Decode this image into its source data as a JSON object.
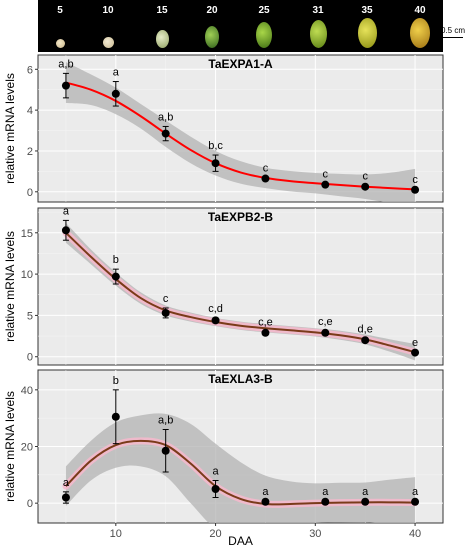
{
  "seed_strip": {
    "labels": [
      "5",
      "10",
      "15",
      "20",
      "25",
      "31",
      "35",
      "40"
    ],
    "scale_label": "0.5 cm"
  },
  "chart_data": [
    {
      "type": "line",
      "title": "TaEXPA1-A",
      "ylabel": "relative mRNA levels",
      "ylim": [
        -0.5,
        6.7
      ],
      "yticks": [
        0,
        2,
        4,
        6
      ],
      "points": [
        {
          "x": 5,
          "y": 5.2,
          "err": 0.6,
          "label": "a,b"
        },
        {
          "x": 10,
          "y": 4.8,
          "err": 0.6,
          "label": "a"
        },
        {
          "x": 15,
          "y": 2.85,
          "err": 0.35,
          "label": "a,b"
        },
        {
          "x": 20,
          "y": 1.4,
          "err": 0.4,
          "label": "b,c"
        },
        {
          "x": 25,
          "y": 0.65,
          "err": 0.05,
          "label": "c"
        },
        {
          "x": 31,
          "y": 0.35,
          "err": 0.05,
          "label": "c"
        },
        {
          "x": 35,
          "y": 0.25,
          "err": 0.05,
          "label": "c"
        },
        {
          "x": 40,
          "y": 0.1,
          "err": 0.03,
          "label": "c"
        }
      ],
      "fit": {
        "color": "#ff0000",
        "x": [
          5,
          7.5,
          10,
          12.5,
          15,
          17.5,
          20,
          22.5,
          25,
          27.5,
          30,
          32.5,
          35,
          37.5,
          40
        ],
        "y": [
          5.35,
          5.0,
          4.45,
          3.7,
          2.85,
          2.05,
          1.4,
          0.95,
          0.68,
          0.52,
          0.42,
          0.33,
          0.25,
          0.18,
          0.12
        ],
        "ci": [
          1.0,
          0.75,
          0.65,
          0.6,
          0.65,
          0.65,
          0.6,
          0.55,
          0.5,
          0.5,
          0.5,
          0.55,
          0.6,
          0.75,
          1.0
        ]
      }
    },
    {
      "type": "line",
      "title": "TaEXPB2-B",
      "ylabel": "relative mRNA levels",
      "ylim": [
        -1.0,
        18.0
      ],
      "yticks": [
        0,
        5,
        10,
        15
      ],
      "points": [
        {
          "x": 5,
          "y": 15.3,
          "err": 1.2,
          "label": "a"
        },
        {
          "x": 10,
          "y": 9.7,
          "err": 0.9,
          "label": "b"
        },
        {
          "x": 15,
          "y": 5.3,
          "err": 0.6,
          "label": "c"
        },
        {
          "x": 20,
          "y": 4.4,
          "err": 0.3,
          "label": "c,d"
        },
        {
          "x": 25,
          "y": 2.9,
          "err": 0.15,
          "label": "c,e"
        },
        {
          "x": 31,
          "y": 2.9,
          "err": 0.2,
          "label": "c,e"
        },
        {
          "x": 35,
          "y": 2.0,
          "err": 0.2,
          "label": "d,e"
        },
        {
          "x": 40,
          "y": 0.5,
          "err": 0.1,
          "label": "e"
        }
      ],
      "fit": {
        "color": "#7a3b1a",
        "x": [
          5,
          7.5,
          10,
          12.5,
          15,
          17.5,
          20,
          22.5,
          25,
          27.5,
          30,
          32.5,
          35,
          37.5,
          40
        ],
        "y": [
          15.0,
          12.1,
          9.4,
          7.1,
          5.6,
          4.8,
          4.2,
          3.75,
          3.45,
          3.2,
          2.95,
          2.6,
          2.1,
          1.35,
          0.55
        ],
        "ci": [
          1.2,
          0.9,
          0.8,
          0.7,
          0.6,
          0.55,
          0.5,
          0.5,
          0.5,
          0.5,
          0.5,
          0.55,
          0.6,
          0.75,
          1.0
        ]
      }
    },
    {
      "type": "line",
      "title": "TaEXLA3-B",
      "ylabel": "relative mRNA levels",
      "ylim": [
        -7.0,
        47.0
      ],
      "yticks": [
        0,
        20,
        40
      ],
      "points": [
        {
          "x": 5,
          "y": 2.0,
          "err": 2.0,
          "label": "a"
        },
        {
          "x": 10,
          "y": 30.5,
          "err": 9.5,
          "label": "b"
        },
        {
          "x": 15,
          "y": 18.5,
          "err": 7.5,
          "label": "a,b"
        },
        {
          "x": 20,
          "y": 5.0,
          "err": 3.0,
          "label": "a"
        },
        {
          "x": 25,
          "y": 0.5,
          "err": 0.3,
          "label": "a"
        },
        {
          "x": 31,
          "y": 0.5,
          "err": 0.3,
          "label": "a"
        },
        {
          "x": 35,
          "y": 0.5,
          "err": 0.3,
          "label": "a"
        },
        {
          "x": 40,
          "y": 0.5,
          "err": 0.3,
          "label": "a"
        }
      ],
      "fit": {
        "color": "#7a3b1a",
        "x": [
          5,
          7.5,
          10,
          12.5,
          15,
          17.5,
          20,
          22.5,
          25,
          27.5,
          30,
          32.5,
          35,
          37.5,
          40
        ],
        "y": [
          6.0,
          15.0,
          20.5,
          22.0,
          20.5,
          14.0,
          6.0,
          1.5,
          -0.3,
          -0.3,
          0.0,
          0.2,
          0.3,
          0.3,
          0.2
        ],
        "ci": [
          7.0,
          7.0,
          8.0,
          9.0,
          11.0,
          14.0,
          15.0,
          13.0,
          10.0,
          8.0,
          7.0,
          7.0,
          7.0,
          8.0,
          9.0
        ]
      }
    }
  ],
  "x_axis": {
    "label": "DAA",
    "range": [
      2.2,
      42.8
    ],
    "ticks": [
      10,
      20,
      30,
      40
    ]
  }
}
